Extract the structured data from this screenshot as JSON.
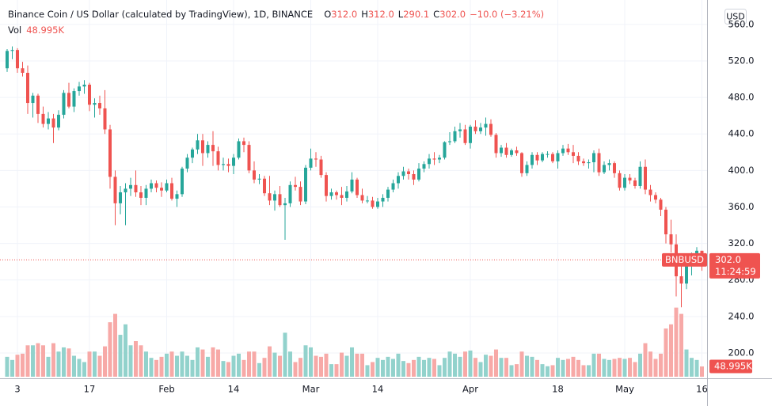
{
  "header": {
    "title": "Binance Coin / US Dollar (calculated by TradingView), 1D, BINANCE",
    "legend": [
      {
        "label": "O",
        "value": "312.0"
      },
      {
        "label": "H",
        "value": "312.0"
      },
      {
        "label": "L",
        "value": "290.1"
      },
      {
        "label": "C",
        "value": "302.0"
      }
    ],
    "change": "−10.0 (−3.21%)",
    "volume_label": "Vol"
  },
  "currency": "USD",
  "price_tag": {
    "symbol": "BNBUSD",
    "price": "302.0",
    "countdown": "11:24:59"
  },
  "chart_data": {
    "type": "candlestick",
    "x": [
      "Jan 1",
      "Jan 2",
      "Jan 3",
      "Jan 4",
      "Jan 5",
      "Jan 6",
      "Jan 7",
      "Jan 8",
      "Jan 9",
      "Jan 10",
      "Jan 11",
      "Jan 12",
      "Jan 13",
      "Jan 14",
      "Jan 15",
      "Jan 16",
      "Jan 17",
      "Jan 18",
      "Jan 19",
      "Jan 20",
      "Jan 21",
      "Jan 22",
      "Jan 23",
      "Jan 24",
      "Jan 25",
      "Jan 26",
      "Jan 27",
      "Jan 28",
      "Jan 29",
      "Jan 30",
      "Jan 31",
      "Feb 1",
      "Feb 2",
      "Feb 3",
      "Feb 4",
      "Feb 5",
      "Feb 6",
      "Feb 7",
      "Feb 8",
      "Feb 9",
      "Feb 10",
      "Feb 11",
      "Feb 12",
      "Feb 13",
      "Feb 14",
      "Feb 15",
      "Feb 16",
      "Feb 17",
      "Feb 18",
      "Feb 19",
      "Feb 20",
      "Feb 21",
      "Feb 22",
      "Feb 23",
      "Feb 24",
      "Feb 25",
      "Feb 26",
      "Feb 27",
      "Feb 28",
      "Mar 1",
      "Mar 2",
      "Mar 3",
      "Mar 4",
      "Mar 5",
      "Mar 6",
      "Mar 7",
      "Mar 8",
      "Mar 9",
      "Mar 10",
      "Mar 11",
      "Mar 12",
      "Mar 13",
      "Mar 14",
      "Mar 15",
      "Mar 16",
      "Mar 17",
      "Mar 18",
      "Mar 19",
      "Mar 20",
      "Mar 21",
      "Mar 22",
      "Mar 23",
      "Mar 24",
      "Mar 25",
      "Mar 26",
      "Mar 27",
      "Mar 28",
      "Mar 29",
      "Mar 30",
      "Mar 31",
      "Apr 1",
      "Apr 2",
      "Apr 3",
      "Apr 4",
      "Apr 5",
      "Apr 6",
      "Apr 7",
      "Apr 8",
      "Apr 9",
      "Apr 10",
      "Apr 11",
      "Apr 12",
      "Apr 13",
      "Apr 14",
      "Apr 15",
      "Apr 16",
      "Apr 17",
      "Apr 18",
      "Apr 19",
      "Apr 20",
      "Apr 21",
      "Apr 22",
      "Apr 23",
      "Apr 24",
      "Apr 25",
      "Apr 26",
      "Apr 27",
      "Apr 28",
      "Apr 29",
      "Apr 30",
      "May 1",
      "May 2",
      "May 3",
      "May 4",
      "May 5",
      "May 6",
      "May 7",
      "May 8",
      "May 9",
      "May 10",
      "May 11",
      "May 12",
      "May 13",
      "May 14",
      "May 15",
      "May 16"
    ],
    "open": [
      512,
      531,
      532,
      512,
      507,
      474,
      482,
      462,
      451,
      457,
      447,
      461,
      485,
      470,
      487,
      492,
      494,
      472,
      474,
      468,
      445,
      393,
      364,
      376,
      380,
      384,
      376,
      370,
      380,
      386,
      381,
      378,
      386,
      369,
      374,
      402,
      414,
      423,
      433,
      419,
      428,
      421,
      406,
      407,
      405,
      414,
      432,
      428,
      400,
      390,
      391,
      375,
      367,
      374,
      362,
      364,
      384,
      382,
      366,
      403,
      413,
      412,
      395,
      372,
      376,
      373,
      370,
      377,
      390,
      373,
      367,
      367,
      360,
      366,
      370,
      379,
      386,
      394,
      399,
      396,
      390,
      402,
      407,
      413,
      412,
      414,
      431,
      432,
      443,
      445,
      430,
      448,
      443,
      447,
      451,
      439,
      419,
      425,
      417,
      422,
      419,
      397,
      406,
      417,
      411,
      418,
      418,
      410,
      419,
      424,
      420,
      416,
      410,
      408,
      409,
      419,
      398,
      406,
      408,
      397,
      381,
      392,
      389,
      383,
      404,
      379,
      373,
      368,
      357,
      330,
      319,
      284,
      276,
      297,
      302,
      312
    ],
    "high": [
      533,
      536,
      534,
      519,
      515,
      485,
      484,
      470,
      464,
      462,
      466,
      488,
      496,
      490,
      497,
      499,
      496,
      479,
      482,
      488,
      450,
      400,
      383,
      386,
      392,
      400,
      383,
      384,
      390,
      389,
      387,
      390,
      392,
      378,
      404,
      418,
      425,
      440,
      440,
      432,
      443,
      426,
      414,
      413,
      418,
      435,
      436,
      432,
      410,
      396,
      394,
      394,
      378,
      383,
      370,
      388,
      393,
      388,
      406,
      424,
      420,
      416,
      398,
      380,
      378,
      382,
      383,
      398,
      392,
      380,
      372,
      371,
      370,
      374,
      382,
      390,
      398,
      404,
      402,
      400,
      408,
      410,
      418,
      420,
      417,
      432,
      442,
      448,
      452,
      450,
      450,
      455,
      452,
      458,
      456,
      441,
      428,
      430,
      424,
      426,
      420,
      410,
      420,
      420,
      420,
      421,
      420,
      422,
      428,
      429,
      428,
      420,
      413,
      412,
      422,
      424,
      410,
      412,
      410,
      400,
      396,
      396,
      392,
      410,
      412,
      384,
      376,
      370,
      360,
      346,
      330,
      300,
      305,
      310,
      316,
      312
    ],
    "low": [
      508,
      522,
      507,
      503,
      462,
      458,
      452,
      447,
      445,
      430,
      444,
      457,
      468,
      464,
      482,
      484,
      465,
      458,
      461,
      440,
      380,
      340,
      352,
      340,
      372,
      371,
      362,
      362,
      376,
      376,
      371,
      376,
      367,
      360,
      371,
      398,
      408,
      418,
      405,
      414,
      405,
      400,
      400,
      398,
      396,
      412,
      420,
      397,
      386,
      385,
      372,
      362,
      356,
      360,
      324,
      360,
      378,
      362,
      363,
      400,
      404,
      392,
      366,
      368,
      368,
      362,
      366,
      375,
      370,
      364,
      364,
      358,
      358,
      360,
      366,
      376,
      380,
      390,
      390,
      384,
      388,
      398,
      402,
      406,
      408,
      412,
      428,
      430,
      436,
      428,
      424,
      440,
      440,
      438,
      437,
      414,
      415,
      414,
      415,
      416,
      393,
      394,
      402,
      406,
      409,
      414,
      408,
      402,
      416,
      417,
      408,
      406,
      405,
      402,
      398,
      394,
      396,
      400,
      392,
      378,
      378,
      385,
      380,
      380,
      374,
      366,
      364,
      350,
      320,
      310,
      262,
      250,
      270,
      285,
      296,
      290.1
    ],
    "close": [
      531,
      532,
      512,
      507,
      474,
      482,
      462,
      451,
      457,
      447,
      461,
      485,
      470,
      487,
      492,
      494,
      472,
      474,
      468,
      445,
      393,
      364,
      376,
      380,
      384,
      376,
      370,
      380,
      386,
      381,
      378,
      386,
      369,
      374,
      402,
      414,
      423,
      433,
      419,
      428,
      421,
      406,
      407,
      405,
      414,
      432,
      428,
      400,
      390,
      391,
      375,
      367,
      374,
      362,
      364,
      384,
      382,
      366,
      403,
      413,
      412,
      395,
      372,
      376,
      373,
      370,
      377,
      390,
      373,
      367,
      367,
      360,
      366,
      370,
      379,
      386,
      394,
      399,
      396,
      390,
      402,
      407,
      413,
      412,
      414,
      431,
      432,
      443,
      445,
      430,
      448,
      443,
      447,
      451,
      439,
      419,
      425,
      417,
      422,
      419,
      397,
      406,
      417,
      411,
      418,
      418,
      410,
      419,
      424,
      420,
      416,
      410,
      408,
      409,
      419,
      398,
      406,
      408,
      397,
      381,
      392,
      389,
      383,
      404,
      379,
      373,
      368,
      357,
      330,
      319,
      284,
      276,
      297,
      302,
      312,
      302
    ],
    "volume": [
      95000,
      80000,
      105000,
      110000,
      150000,
      150000,
      160000,
      150000,
      95000,
      160000,
      120000,
      140000,
      135000,
      100000,
      85000,
      70000,
      120000,
      120000,
      100000,
      145000,
      260000,
      300000,
      200000,
      250000,
      150000,
      170000,
      150000,
      120000,
      90000,
      80000,
      95000,
      110000,
      120000,
      100000,
      120000,
      100000,
      80000,
      140000,
      130000,
      95000,
      140000,
      130000,
      75000,
      70000,
      100000,
      110000,
      80000,
      120000,
      120000,
      65000,
      90000,
      145000,
      115000,
      100000,
      210000,
      120000,
      70000,
      90000,
      150000,
      140000,
      100000,
      95000,
      110000,
      60000,
      60000,
      115000,
      100000,
      140000,
      110000,
      110000,
      55000,
      70000,
      90000,
      80000,
      95000,
      85000,
      110000,
      75000,
      65000,
      80000,
      95000,
      80000,
      90000,
      85000,
      55000,
      90000,
      120000,
      110000,
      95000,
      120000,
      125000,
      90000,
      70000,
      105000,
      100000,
      130000,
      90000,
      90000,
      55000,
      60000,
      120000,
      100000,
      95000,
      80000,
      60000,
      50000,
      55000,
      90000,
      80000,
      85000,
      95000,
      80000,
      55000,
      55000,
      110000,
      110000,
      85000,
      80000,
      85000,
      90000,
      85000,
      90000,
      70000,
      110000,
      160000,
      120000,
      85000,
      110000,
      230000,
      250000,
      330000,
      300000,
      130000,
      90000,
      80000,
      48995
    ],
    "value_labels": {
      "volume": {
        "135": "48.995K"
      }
    },
    "ylim": [
      172.2,
      586.8
    ],
    "yticks": [
      {
        "value": 200,
        "label": "200.0"
      },
      {
        "value": 240,
        "label": "240.0"
      },
      {
        "value": 280,
        "label": "280.0"
      },
      {
        "value": 320,
        "label": "320.0"
      },
      {
        "value": 360,
        "label": "360.0"
      },
      {
        "value": 400,
        "label": "400.0"
      },
      {
        "value": 440,
        "label": "440.0"
      },
      {
        "value": 480,
        "label": "480.0"
      },
      {
        "value": 520,
        "label": "520.0"
      },
      {
        "value": 560,
        "label": "560.0"
      }
    ],
    "xticks": [
      {
        "value": "Jan 3",
        "label": "3"
      },
      {
        "value": "Jan 17",
        "label": "17"
      },
      {
        "value": "Feb 1",
        "label": "Feb"
      },
      {
        "value": "Feb 14",
        "label": "14"
      },
      {
        "value": "Mar 1",
        "label": "Mar"
      },
      {
        "value": "Mar 14",
        "label": "14"
      },
      {
        "value": "Apr 1",
        "label": "Apr"
      },
      {
        "value": "Apr 18",
        "label": "18"
      },
      {
        "value": "May 1",
        "label": "May"
      },
      {
        "value": "May 16",
        "label": "16"
      }
    ],
    "vlim": [
      0,
      340000
    ],
    "grid": true,
    "up_color": "#26a69a",
    "down_color": "#ef5350",
    "up_volume_color": "#92d2cc",
    "down_volume_color": "#f7a9a7"
  }
}
